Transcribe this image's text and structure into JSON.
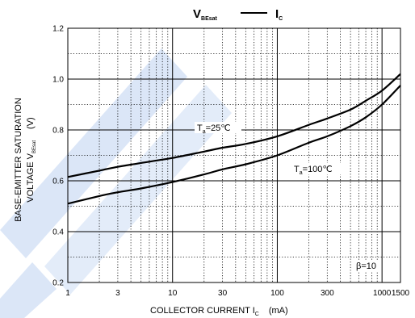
{
  "chart_data": {
    "type": "line",
    "title": {
      "left_main": "V",
      "left_sub": "BEsat",
      "right_main": "I",
      "right_sub": "C"
    },
    "xlabel": {
      "main": "COLLECTOR CURRENT   I",
      "sub": "C",
      "unit": "(mA)"
    },
    "ylabel": {
      "line1": "BASE-EMITTER SATURATION",
      "line2_main": "VOLTAGE   V",
      "line2_sub": "BEsat",
      "unit": "(V)"
    },
    "x_scale": "log",
    "xlim": [
      1,
      1500
    ],
    "ylim": [
      0.2,
      1.2
    ],
    "x_ticks": [
      {
        "value": 1,
        "label": "1"
      },
      {
        "value": 3,
        "label": "3"
      },
      {
        "value": 10,
        "label": "10"
      },
      {
        "value": 30,
        "label": "30"
      },
      {
        "value": 100,
        "label": "100"
      },
      {
        "value": 300,
        "label": "300"
      },
      {
        "value": 1000,
        "label": "1000"
      },
      {
        "value": 1500,
        "label": "1500"
      }
    ],
    "y_ticks": [
      {
        "value": 0.2,
        "label": "0.2"
      },
      {
        "value": 0.4,
        "label": "0.4"
      },
      {
        "value": 0.6,
        "label": "0.6"
      },
      {
        "value": 0.8,
        "label": "0.8"
      },
      {
        "value": 1.0,
        "label": "1.0"
      },
      {
        "value": 1.2,
        "label": "1.2"
      }
    ],
    "grid": true,
    "series": [
      {
        "label_main": "T",
        "label_sub": "a",
        "label_rest": "=25℃",
        "x": [
          1,
          2,
          3,
          5,
          10,
          20,
          30,
          50,
          100,
          200,
          300,
          500,
          700,
          1000,
          1500
        ],
        "y": [
          0.615,
          0.64,
          0.655,
          0.67,
          0.69,
          0.715,
          0.73,
          0.745,
          0.775,
          0.82,
          0.845,
          0.88,
          0.915,
          0.955,
          1.02
        ]
      },
      {
        "label_main": "T",
        "label_sub": "a",
        "label_rest": "=100℃",
        "x": [
          1,
          2,
          3,
          5,
          10,
          20,
          30,
          50,
          100,
          200,
          300,
          500,
          700,
          1000,
          1500
        ],
        "y": [
          0.51,
          0.54,
          0.555,
          0.57,
          0.595,
          0.625,
          0.645,
          0.665,
          0.7,
          0.75,
          0.775,
          0.815,
          0.85,
          0.9,
          0.975
        ]
      }
    ],
    "annotation": "β=10"
  }
}
